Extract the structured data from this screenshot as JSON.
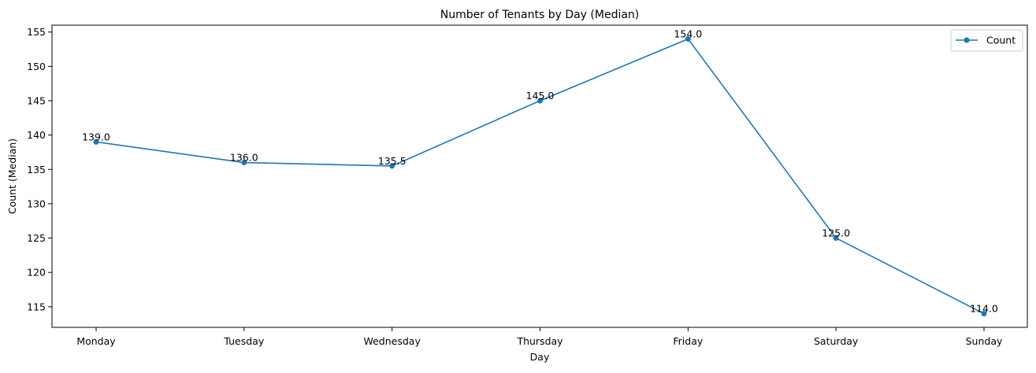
{
  "chart_data": {
    "type": "line",
    "title": "Number of Tenants by Day (Median)",
    "xlabel": "Day",
    "ylabel": "Count (Median)",
    "categories": [
      "Monday",
      "Tuesday",
      "Wednesday",
      "Thursday",
      "Friday",
      "Saturday",
      "Sunday"
    ],
    "series": [
      {
        "name": "Count",
        "values": [
          139.0,
          136.0,
          135.5,
          145.0,
          154.0,
          125.0,
          114.0
        ],
        "color": "#1f77b4",
        "marker": "circle"
      }
    ],
    "data_labels": [
      "139.0",
      "136.0",
      "135.5",
      "145.0",
      "154.0",
      "125.0",
      "114.0"
    ],
    "y_ticks": [
      115,
      120,
      125,
      130,
      135,
      140,
      145,
      150,
      155
    ],
    "ylim": [
      112.0,
      156.0
    ],
    "grid": false,
    "legend_position": "top-right"
  }
}
